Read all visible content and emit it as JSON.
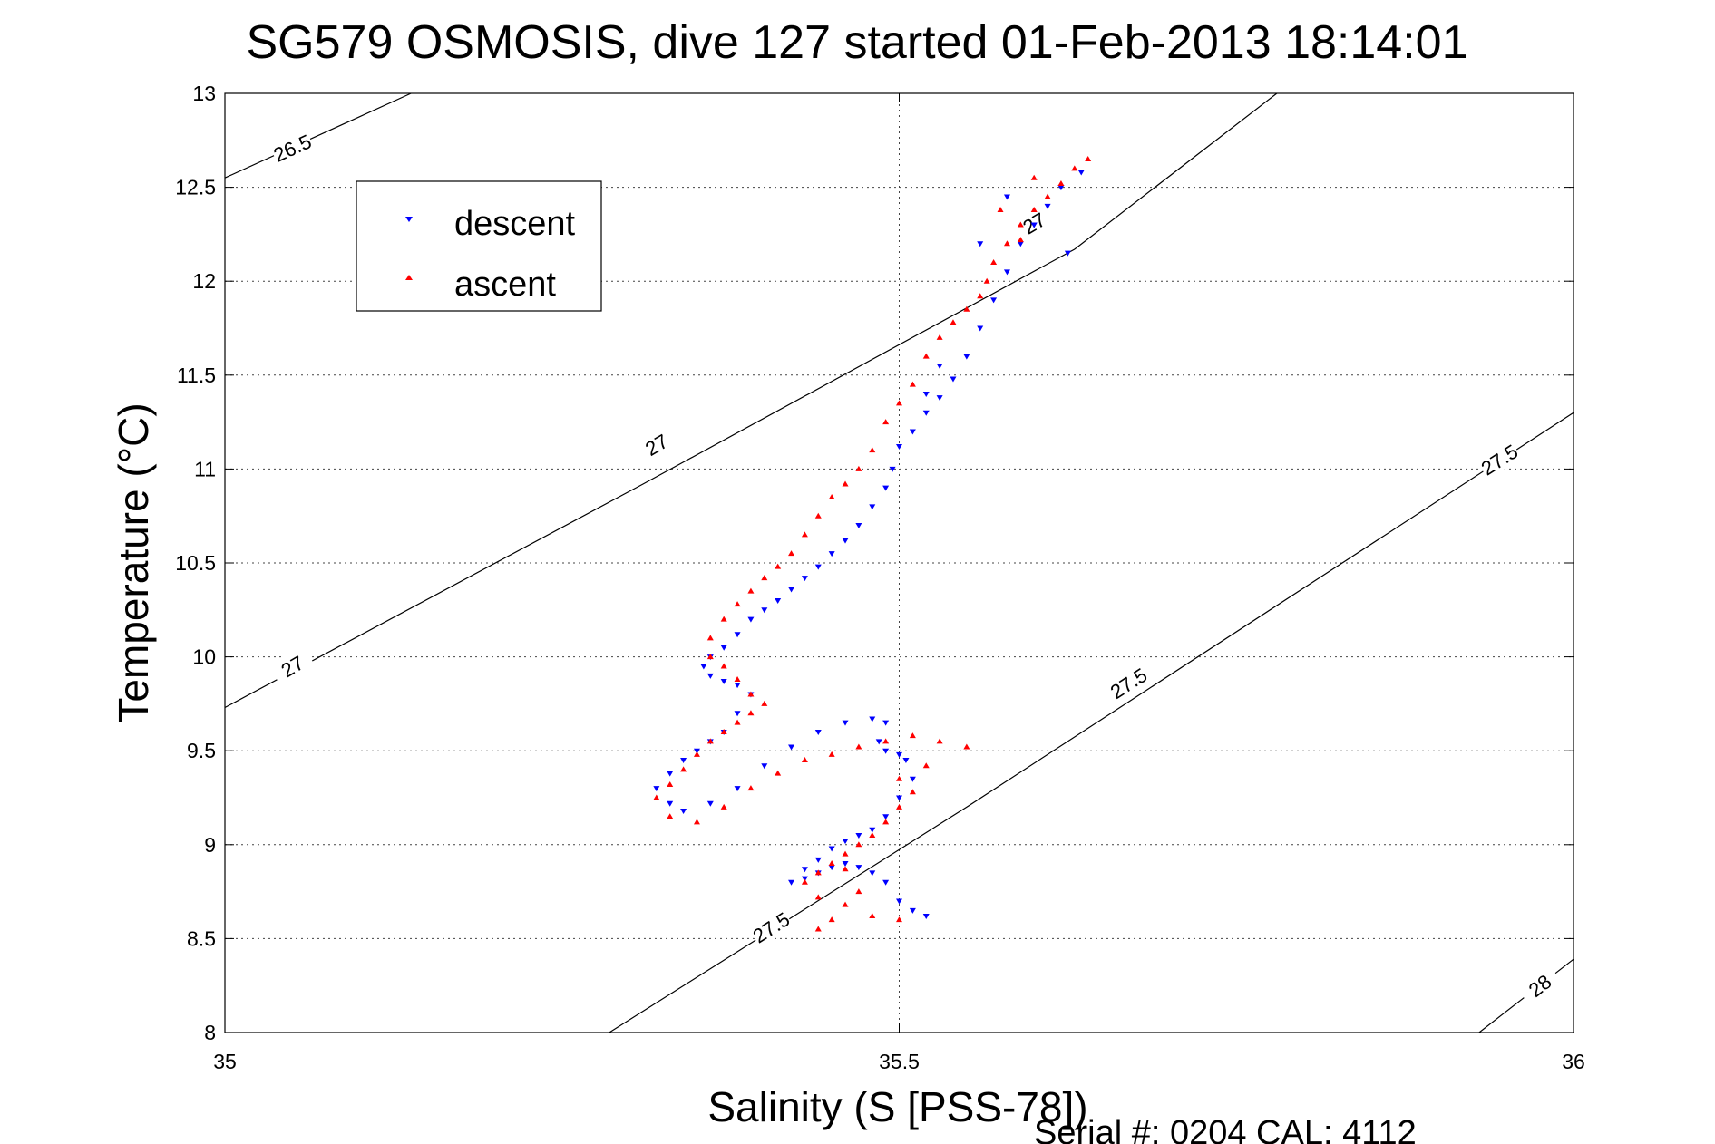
{
  "chart_data": {
    "type": "scatter",
    "title": "SG579 OSMOSIS, dive 127 started 01-Feb-2013 18:14:01",
    "xlabel": "Salinity (S [PSS-78])",
    "ylabel": "Temperature (°C)",
    "xlim": [
      35,
      36
    ],
    "ylim": [
      8,
      13
    ],
    "x_ticks": [
      "35",
      "35.5",
      "36"
    ],
    "x_tick_values": [
      35,
      35.5,
      36
    ],
    "y_ticks": [
      "8",
      "8.5",
      "9",
      "9.5",
      "10",
      "10.5",
      "11",
      "11.5",
      "12",
      "12.5",
      "13"
    ],
    "y_tick_values": [
      8,
      8.5,
      9,
      9.5,
      10,
      10.5,
      11,
      11.5,
      12,
      12.5,
      13
    ],
    "grid": true,
    "legend_position": "top-left",
    "footer": "Serial #: 0204  CAL: 4112",
    "density_contours": [
      {
        "label": "26.5",
        "points": [
          [
            35,
            12.55
          ],
          [
            35.138,
            13
          ]
        ],
        "label_points": [
          [
            35.05,
            12.71
          ]
        ]
      },
      {
        "label": "27",
        "points": [
          [
            35,
            9.73
          ],
          [
            35.31,
            10.92
          ],
          [
            35.63,
            12.17
          ],
          [
            35.78,
            13
          ]
        ],
        "label_points": [
          [
            35.05,
            9.95
          ],
          [
            35.32,
            11.13
          ],
          [
            35.6,
            12.31
          ]
        ]
      },
      {
        "label": "27.5",
        "points": [
          [
            35.285,
            8
          ],
          [
            35.55,
            9.2
          ],
          [
            36,
            11.3
          ]
        ],
        "label_points": [
          [
            35.405,
            8.56
          ],
          [
            35.67,
            9.86
          ],
          [
            35.945,
            11.05
          ]
        ]
      },
      {
        "label": "28",
        "points": [
          [
            35.93,
            8
          ],
          [
            36,
            8.39
          ]
        ],
        "label_points": [
          [
            35.975,
            8.25
          ]
        ]
      }
    ],
    "series": [
      {
        "name": "descent",
        "color": "#0000ff",
        "marker": "triangle-down",
        "x": [
          35.635,
          35.62,
          35.61,
          35.6,
          35.59,
          35.58,
          35.57,
          35.56,
          35.55,
          35.54,
          35.53,
          35.52,
          35.51,
          35.5,
          35.495,
          35.49,
          35.48,
          35.47,
          35.46,
          35.45,
          35.44,
          35.43,
          35.42,
          35.41,
          35.4,
          35.39,
          35.38,
          35.37,
          35.36,
          35.355,
          35.36,
          35.37,
          35.38,
          35.39,
          35.38,
          35.37,
          35.36,
          35.35,
          35.34,
          35.33,
          35.32,
          35.33,
          35.34,
          35.36,
          35.38,
          35.4,
          35.42,
          35.44,
          35.46,
          35.48,
          35.49,
          35.485,
          35.49,
          35.5,
          35.505,
          35.51,
          35.5,
          35.49,
          35.48,
          35.47,
          35.46,
          35.45,
          35.44,
          35.43,
          35.42,
          35.43,
          35.44,
          35.45,
          35.46,
          35.47,
          35.48,
          35.49,
          35.5,
          35.51,
          35.52,
          35.625,
          35.6,
          35.58,
          35.56,
          35.53,
          35.52
        ],
        "y": [
          12.58,
          12.5,
          12.4,
          12.3,
          12.2,
          12.05,
          11.9,
          11.75,
          11.6,
          11.48,
          11.38,
          11.3,
          11.2,
          11.12,
          11.0,
          10.9,
          10.8,
          10.7,
          10.62,
          10.55,
          10.48,
          10.42,
          10.36,
          10.3,
          10.25,
          10.2,
          10.12,
          10.05,
          10.0,
          9.95,
          9.9,
          9.87,
          9.85,
          9.8,
          9.7,
          9.6,
          9.55,
          9.5,
          9.45,
          9.38,
          9.3,
          9.22,
          9.18,
          9.22,
          9.3,
          9.42,
          9.52,
          9.6,
          9.65,
          9.67,
          9.65,
          9.55,
          9.5,
          9.48,
          9.45,
          9.35,
          9.25,
          9.15,
          9.08,
          9.05,
          9.02,
          8.98,
          8.92,
          8.87,
          8.8,
          8.82,
          8.85,
          8.88,
          8.9,
          8.88,
          8.85,
          8.8,
          8.7,
          8.65,
          8.62,
          12.15,
          12.3,
          12.45,
          12.2,
          11.55,
          11.4
        ]
      },
      {
        "name": "ascent",
        "color": "#ff0000",
        "marker": "triangle-up",
        "x": [
          35.64,
          35.63,
          35.62,
          35.61,
          35.6,
          35.59,
          35.58,
          35.57,
          35.565,
          35.56,
          35.55,
          35.54,
          35.53,
          35.52,
          35.51,
          35.5,
          35.49,
          35.48,
          35.47,
          35.46,
          35.45,
          35.44,
          35.43,
          35.42,
          35.41,
          35.4,
          35.39,
          35.38,
          35.37,
          35.36,
          35.36,
          35.37,
          35.38,
          35.39,
          35.4,
          35.39,
          35.38,
          35.37,
          35.36,
          35.35,
          35.34,
          35.33,
          35.32,
          35.33,
          35.35,
          35.37,
          35.39,
          35.41,
          35.43,
          35.45,
          35.47,
          35.49,
          35.51,
          35.53,
          35.55,
          35.52,
          35.5,
          35.51,
          35.5,
          35.49,
          35.48,
          35.47,
          35.46,
          35.45,
          35.44,
          35.43,
          35.44,
          35.46,
          35.48,
          35.5,
          35.47,
          35.45,
          35.44,
          35.46,
          35.6,
          35.575,
          35.59
        ],
        "y": [
          12.65,
          12.6,
          12.52,
          12.45,
          12.38,
          12.3,
          12.2,
          12.1,
          12.0,
          11.92,
          11.85,
          11.78,
          11.7,
          11.6,
          11.45,
          11.35,
          11.25,
          11.1,
          11.0,
          10.92,
          10.85,
          10.75,
          10.65,
          10.55,
          10.48,
          10.42,
          10.35,
          10.28,
          10.2,
          10.1,
          10.0,
          9.95,
          9.88,
          9.8,
          9.75,
          9.7,
          9.65,
          9.6,
          9.55,
          9.48,
          9.4,
          9.32,
          9.25,
          9.15,
          9.12,
          9.2,
          9.3,
          9.38,
          9.45,
          9.48,
          9.52,
          9.55,
          9.58,
          9.55,
          9.52,
          9.42,
          9.35,
          9.28,
          9.2,
          9.12,
          9.05,
          9.0,
          8.95,
          8.9,
          8.85,
          8.8,
          8.72,
          8.68,
          8.62,
          8.6,
          8.75,
          8.6,
          8.55,
          8.87,
          12.55,
          12.38,
          12.22
        ]
      }
    ]
  }
}
